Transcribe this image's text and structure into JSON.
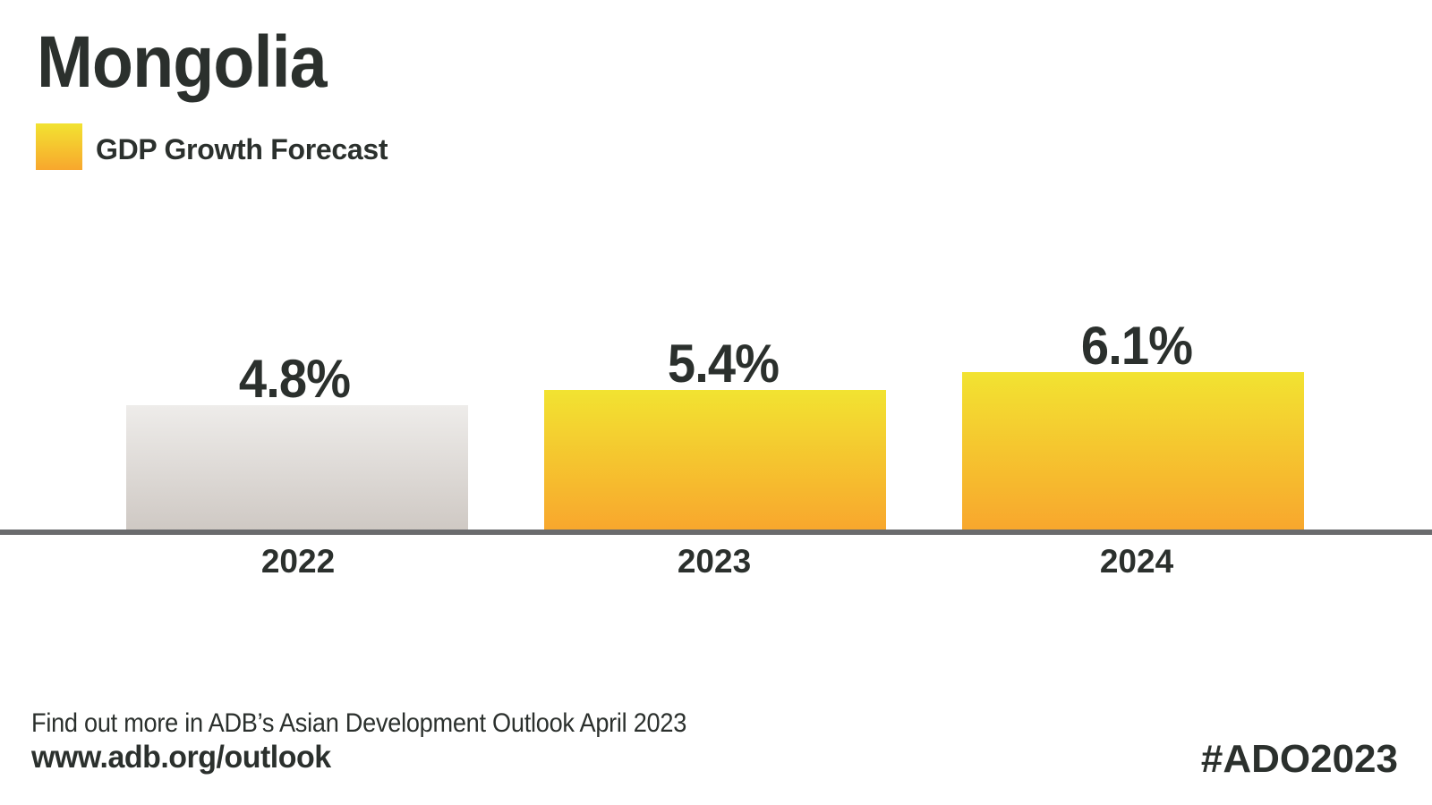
{
  "title": "Mongolia",
  "legend": {
    "label": "GDP Growth Forecast",
    "swatch": "yellow-gradient"
  },
  "chart_data": {
    "type": "bar",
    "title": "Mongolia",
    "series_name": "GDP Growth Forecast",
    "categories": [
      "2022",
      "2023",
      "2024"
    ],
    "values": [
      4.8,
      5.4,
      6.1
    ],
    "value_labels": [
      "4.8%",
      "5.4%",
      "6.1%"
    ],
    "unit": "%",
    "xlabel": "",
    "ylabel": "",
    "ylim": [
      0,
      6.1
    ],
    "grid": false,
    "legend_position": "top-left",
    "bar_styles": [
      "grey-gradient",
      "yellow-gradient",
      "yellow-gradient"
    ]
  },
  "footer": {
    "note": "Find out more in ADB’s Asian Development Outlook April 2023",
    "url_text": "www.adb.org/outlook",
    "hashtag": "#ADO2023"
  },
  "colors": {
    "text": "#2b302d",
    "axis_line": "#6a6b6d",
    "yellow_top": "#f2e331",
    "yellow_bottom": "#f8a72d",
    "grey_top": "#eeecea",
    "grey_bottom": "#cfc9c4",
    "background": "#ffffff"
  }
}
